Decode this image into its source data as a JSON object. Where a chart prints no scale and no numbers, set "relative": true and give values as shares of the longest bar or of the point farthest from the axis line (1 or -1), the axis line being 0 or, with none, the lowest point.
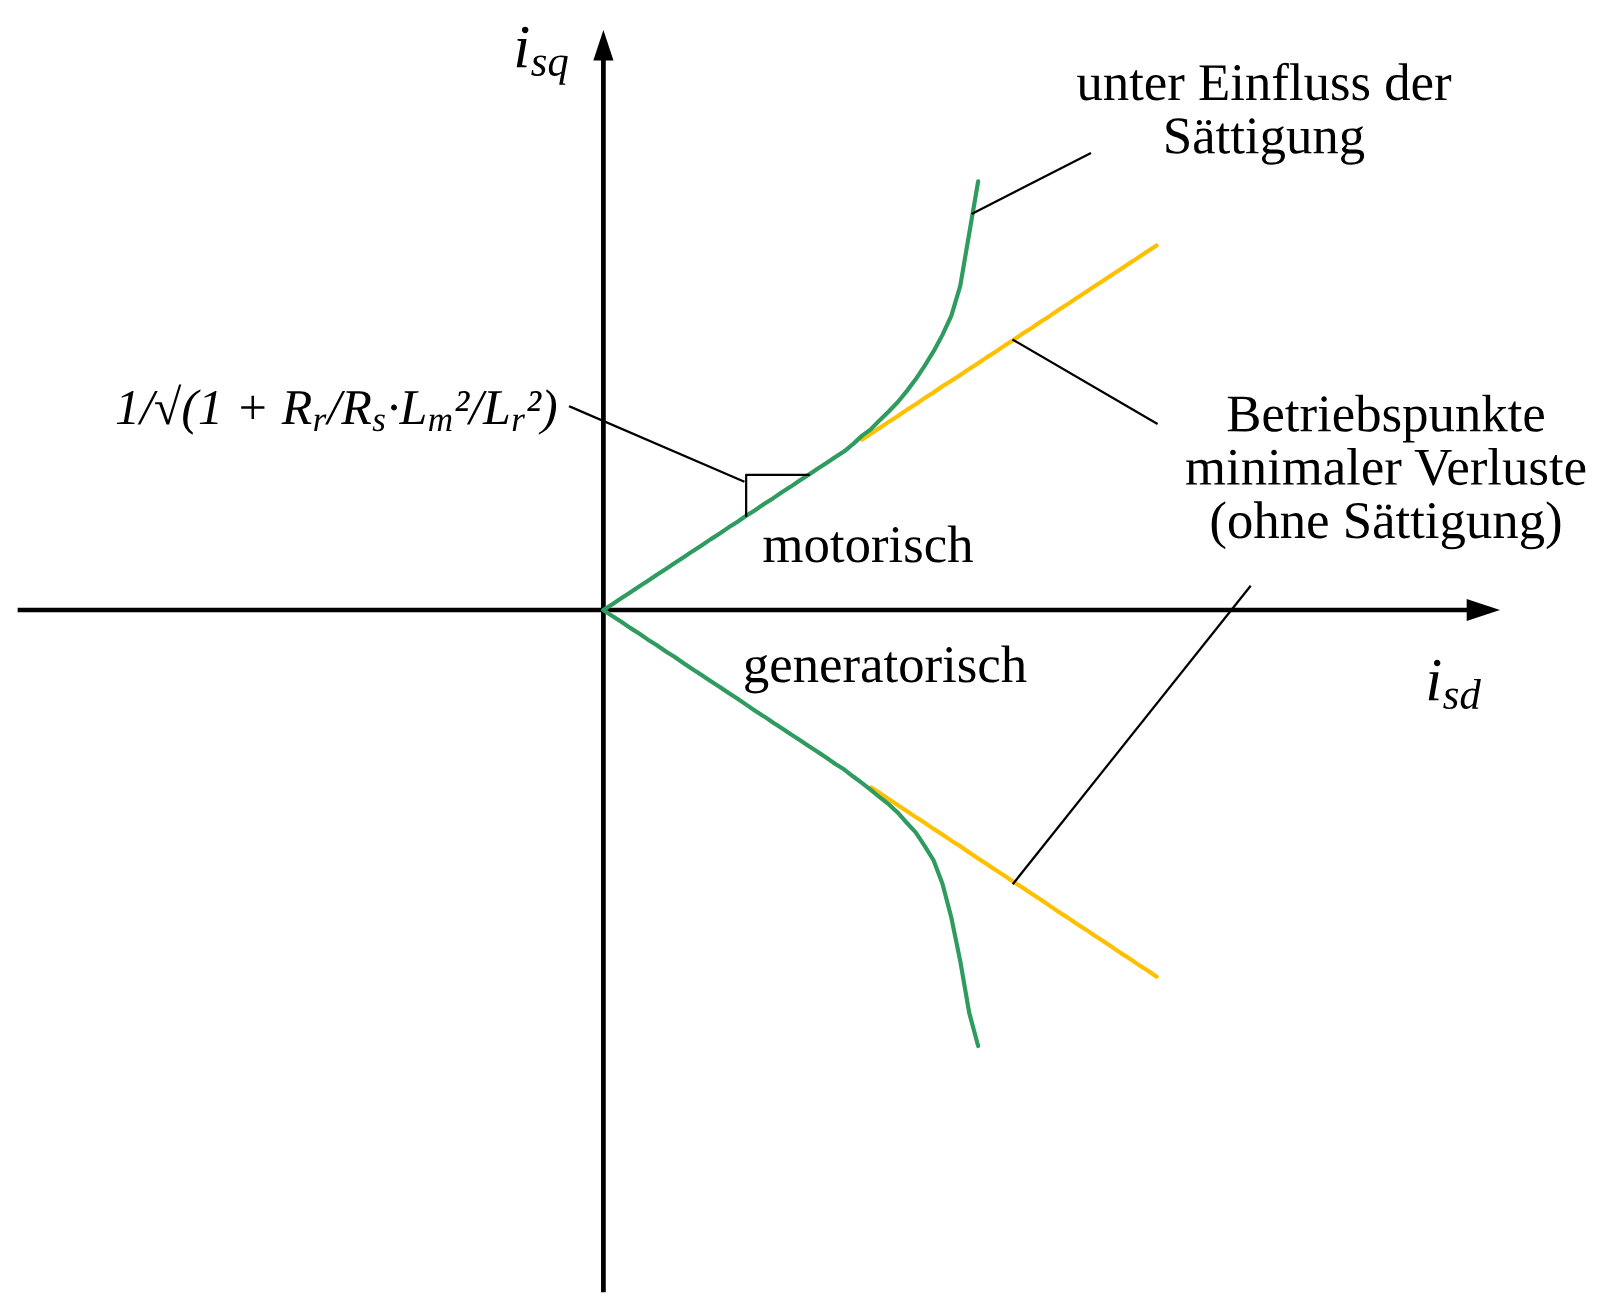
{
  "chart_data": {
    "type": "line",
    "relative": true,
    "xlabel": "i$_{sd}$",
    "ylabel": "i$_{sq}$",
    "categories": [
      null,
      null,
      null,
      null,
      null,
      null,
      null,
      null,
      null,
      null,
      null,
      null,
      null,
      null,
      null,
      null,
      null,
      null,
      null,
      null,
      null,
      null,
      null,
      null,
      null,
      null,
      null,
      null,
      null,
      null,
      null,
      null,
      null,
      null,
      null,
      null,
      null,
      null,
      null,
      null,
      null,
      null,
      null,
      null,
      null,
      null,
      null,
      null,
      null,
      null,
      null,
      null,
      null,
      null,
      null,
      null,
      null,
      null,
      null,
      null,
      null,
      null,
      null
    ],
    "series": [
      {
        "color": "#ffc000",
        "values": [
          null,
          null,
          null,
          null,
          null,
          null,
          null,
          null,
          null,
          null,
          null,
          null,
          null,
          null,
          null,
          null,
          null,
          null,
          null,
          null,
          null,
          null,
          null,
          null,
          null,
          null,
          null,
          null,
          null,
          0.391,
          0.405,
          0.418,
          0.432,
          0.445,
          0.459,
          0.472,
          0.486,
          0.499,
          0.513,
          0.526,
          0.539,
          0.553,
          0.566,
          0.58,
          0.593,
          0.607,
          0.62,
          0.634,
          0.647,
          0.661,
          0.674,
          0.688,
          0.701,
          0.715,
          0.728,
          0.742,
          0.755,
          0.769,
          0.782,
          0.796,
          0.809,
          0.823,
          0.836
        ]
      },
      {
        "color": "#ffc000",
        "values": [
          null,
          null,
          null,
          null,
          null,
          null,
          null,
          null,
          null,
          null,
          null,
          null,
          null,
          null,
          null,
          null,
          null,
          null,
          null,
          null,
          null,
          null,
          null,
          null,
          null,
          null,
          null,
          null,
          null,
          null,
          -0.407,
          -0.42,
          -0.434,
          -0.448,
          -0.461,
          -0.475,
          -0.488,
          -0.502,
          -0.515,
          -0.529,
          -0.542,
          -0.556,
          -0.57,
          -0.583,
          -0.597,
          -0.61,
          -0.624,
          -0.637,
          -0.651,
          -0.664,
          -0.678,
          -0.692,
          -0.705,
          -0.719,
          -0.732,
          -0.746,
          -0.759,
          -0.773,
          -0.787,
          -0.8,
          -0.814,
          -0.827,
          -0.841
        ]
      },
      {
        "color": "#2e9b5f",
        "values": [
          0,
          0.013,
          0.027,
          0.04,
          0.054,
          0.067,
          0.081,
          0.094,
          0.108,
          0.121,
          0.135,
          0.148,
          0.162,
          0.175,
          0.189,
          0.202,
          0.216,
          0.229,
          0.243,
          0.256,
          0.27,
          0.283,
          0.297,
          0.31,
          0.324,
          0.337,
          0.351,
          0.364,
          0.381,
          0.4,
          0.415,
          0.436,
          0.456,
          0.477,
          0.502,
          0.529,
          0.56,
          0.593,
          0.631,
          0.675,
          0.744,
          0.864,
          0.983,
          null,
          null,
          null,
          null,
          null,
          null,
          null,
          null,
          null,
          null,
          null,
          null,
          null,
          null,
          null,
          null,
          null,
          null,
          null,
          null
        ]
      },
      {
        "color": "#2e9b5f",
        "values": [
          0,
          -0.014,
          -0.027,
          -0.041,
          -0.054,
          -0.068,
          -0.081,
          -0.095,
          -0.108,
          -0.122,
          -0.136,
          -0.149,
          -0.163,
          -0.176,
          -0.19,
          -0.203,
          -0.217,
          -0.231,
          -0.244,
          -0.258,
          -0.271,
          -0.285,
          -0.298,
          -0.312,
          -0.325,
          -0.339,
          -0.353,
          -0.366,
          -0.382,
          -0.397,
          -0.413,
          -0.43,
          -0.446,
          -0.465,
          -0.488,
          -0.51,
          -0.541,
          -0.574,
          -0.628,
          -0.706,
          -0.806,
          -0.924,
          -1,
          null,
          null,
          null,
          null,
          null,
          null,
          null,
          null,
          null,
          null,
          null,
          null,
          null,
          null,
          null,
          null,
          null,
          null,
          null,
          null
        ]
      }
    ],
    "annotations": [
      "unter Einfluss der\nSättigung",
      "1/√(1 + R$_{r}$/R$_{s}$·L$_{m}$²/L$_{r}$²)",
      "Betriebspunkte\nminimaler Verluste\n(ohne Sättigung)",
      "motorisch",
      "generatorisch"
    ]
  }
}
